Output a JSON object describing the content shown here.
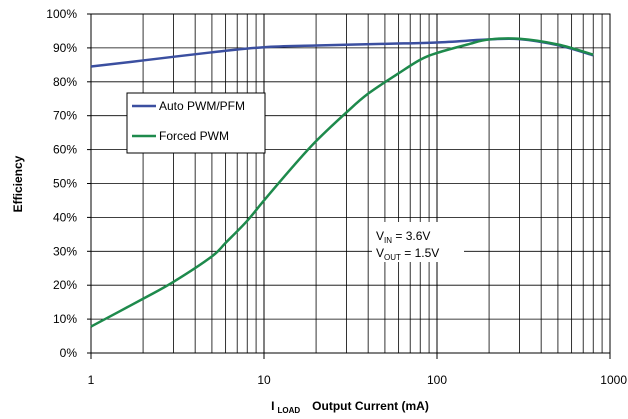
{
  "chart_data": {
    "type": "line",
    "x_scale": "log",
    "xlim": [
      1,
      1000
    ],
    "ylim": [
      0,
      100
    ],
    "grid": true,
    "legend_position": "upper-left",
    "ylabel": "Efficiency",
    "xlabel_prefix": "I",
    "xlabel_sub": "LOAD",
    "xlabel_rest": "Output Current (mA)",
    "x_ticks": [
      "1",
      "10",
      "100",
      "1000"
    ],
    "y_ticks": [
      "0%",
      "10%",
      "20%",
      "30%",
      "40%",
      "50%",
      "60%",
      "70%",
      "80%",
      "90%",
      "100%"
    ],
    "annotations": {
      "vin_label": "V",
      "vin_sub": "IN",
      "vin_value": " = 3.6V",
      "vout_label": "V",
      "vout_sub": "OUT",
      "vout_value": " = 1.5V"
    },
    "series": [
      {
        "name": "Auto PWM/PFM",
        "color": "#3b4fa0",
        "x": [
          1,
          2,
          5,
          10,
          20,
          50,
          100,
          200,
          300,
          500,
          800
        ],
        "y": [
          84.5,
          86.3,
          88.7,
          90.2,
          90.7,
          91.2,
          91.6,
          92.5,
          92.6,
          90.8,
          87.8
        ]
      },
      {
        "name": "Forced PWM",
        "color": "#1e8a4c",
        "x": [
          1,
          2,
          3,
          5,
          6,
          8,
          10,
          15,
          20,
          30,
          40,
          60,
          80,
          100,
          150,
          200,
          300,
          500,
          800
        ],
        "y": [
          7.8,
          16.0,
          21.0,
          28.5,
          32.5,
          39.0,
          45.0,
          55.5,
          62.5,
          71.0,
          76.5,
          82.5,
          86.5,
          88.5,
          91.0,
          92.5,
          92.7,
          91.0,
          88.0
        ]
      }
    ]
  }
}
